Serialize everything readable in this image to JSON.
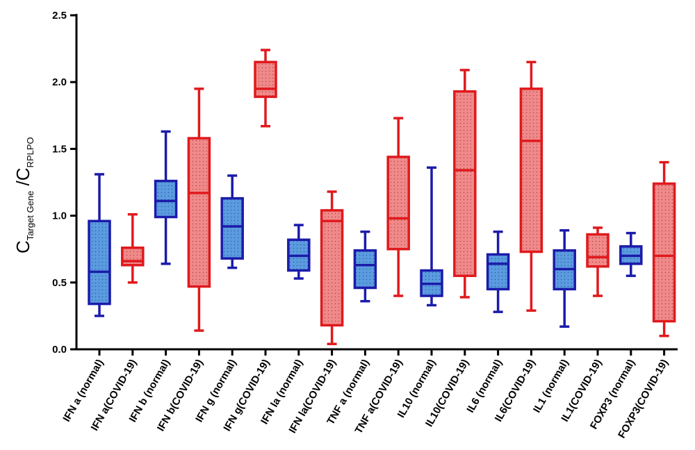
{
  "chart_data": {
    "type": "box",
    "ylabel": {
      "c1": "C",
      "sub1": "Target Gene",
      "sep": " /C",
      "sub2": "RPLPO"
    },
    "ylim": [
      0,
      2.5
    ],
    "yticks": [
      "0.0",
      "0.5",
      "1.0",
      "1.5",
      "2.0",
      "2.5"
    ],
    "grid": false,
    "colors": {
      "normal": {
        "stroke": "#1b1baa",
        "fill": "#5b9be0"
      },
      "covid": {
        "stroke": "#e0191d",
        "fill": "#f08a8a"
      }
    },
    "categories": [
      {
        "label": "IFN a (normal)",
        "group": "normal",
        "min": 0.25,
        "q1": 0.34,
        "median": 0.58,
        "q3": 0.96,
        "max": 1.31
      },
      {
        "label": "IFN a(COVID-19)",
        "group": "covid",
        "min": 0.5,
        "q1": 0.63,
        "median": 0.66,
        "q3": 0.76,
        "max": 1.01
      },
      {
        "label": "IFN b (normal)",
        "group": "normal",
        "min": 0.64,
        "q1": 0.99,
        "median": 1.11,
        "q3": 1.26,
        "max": 1.63
      },
      {
        "label": "IFN b(COVID-19)",
        "group": "covid",
        "min": 0.14,
        "q1": 0.47,
        "median": 1.17,
        "q3": 1.58,
        "max": 1.95
      },
      {
        "label": "IFN g (normal)",
        "group": "normal",
        "min": 0.61,
        "q1": 0.68,
        "median": 0.92,
        "q3": 1.13,
        "max": 1.3
      },
      {
        "label": "IFN g(COVID-19)",
        "group": "covid",
        "min": 1.67,
        "q1": 1.89,
        "median": 1.95,
        "q3": 2.15,
        "max": 2.24
      },
      {
        "label": "IFN la (normal)",
        "group": "normal",
        "min": 0.53,
        "q1": 0.59,
        "median": 0.7,
        "q3": 0.82,
        "max": 0.93
      },
      {
        "label": "IFN la(COVID-19)",
        "group": "covid",
        "min": 0.04,
        "q1": 0.18,
        "median": 0.96,
        "q3": 1.04,
        "max": 1.18
      },
      {
        "label": "TNF a (normal)",
        "group": "normal",
        "min": 0.36,
        "q1": 0.46,
        "median": 0.63,
        "q3": 0.74,
        "max": 0.88
      },
      {
        "label": "TNF a(COVID-19)",
        "group": "covid",
        "min": 0.4,
        "q1": 0.75,
        "median": 0.98,
        "q3": 1.44,
        "max": 1.73
      },
      {
        "label": "IL10 (normal)",
        "group": "normal",
        "min": 0.33,
        "q1": 0.4,
        "median": 0.49,
        "q3": 0.59,
        "max": 1.36
      },
      {
        "label": "IL10(COVID-19)",
        "group": "covid",
        "min": 0.39,
        "q1": 0.55,
        "median": 1.34,
        "q3": 1.93,
        "max": 2.09
      },
      {
        "label": "IL6 (normal)",
        "group": "normal",
        "min": 0.28,
        "q1": 0.45,
        "median": 0.64,
        "q3": 0.71,
        "max": 0.88
      },
      {
        "label": "IL6(COVID-19)",
        "group": "covid",
        "min": 0.29,
        "q1": 0.73,
        "median": 1.56,
        "q3": 1.95,
        "max": 2.15
      },
      {
        "label": "IL1 (normal)",
        "group": "normal",
        "min": 0.17,
        "q1": 0.45,
        "median": 0.6,
        "q3": 0.74,
        "max": 0.89
      },
      {
        "label": "IL1(COVID-19)",
        "group": "covid",
        "min": 0.4,
        "q1": 0.62,
        "median": 0.69,
        "q3": 0.86,
        "max": 0.91
      },
      {
        "label": "FOXP3 (normal)",
        "group": "normal",
        "min": 0.55,
        "q1": 0.64,
        "median": 0.7,
        "q3": 0.77,
        "max": 0.87
      },
      {
        "label": "FOXP3(COVID-19)",
        "group": "covid",
        "min": 0.1,
        "q1": 0.21,
        "median": 0.7,
        "q3": 1.24,
        "max": 1.4
      }
    ]
  }
}
